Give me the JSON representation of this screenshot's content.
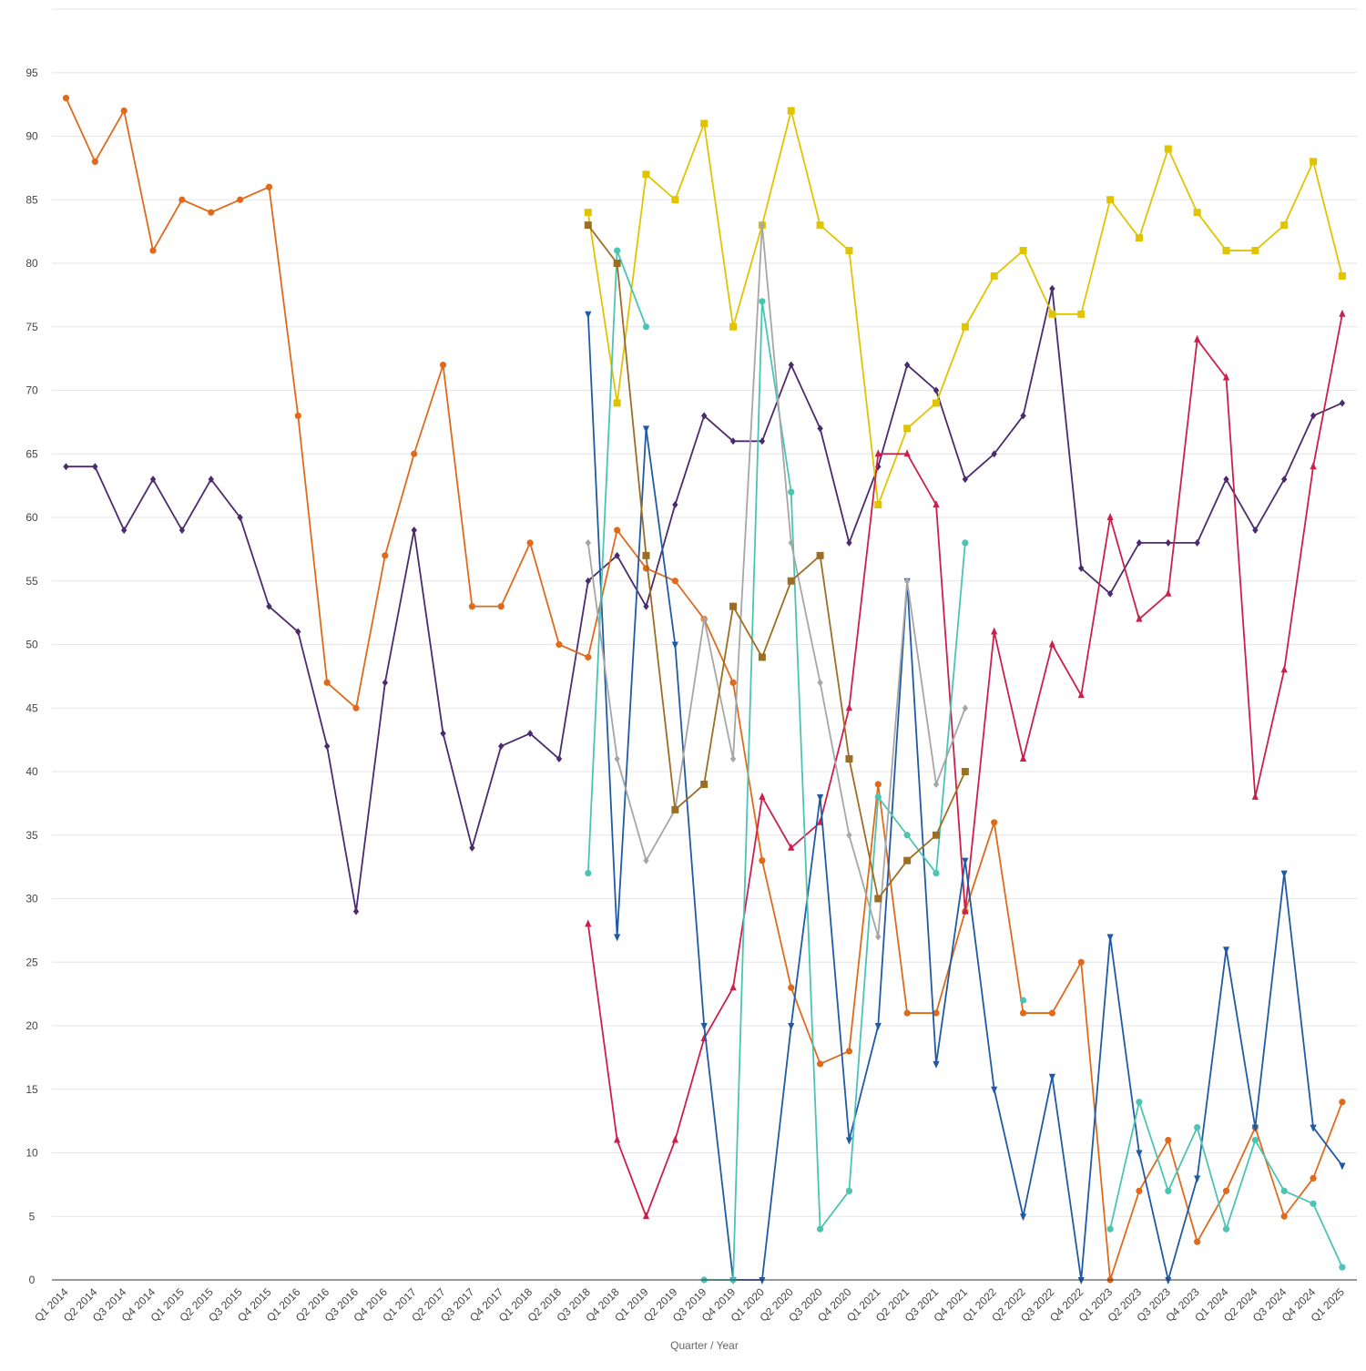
{
  "chart_data": {
    "type": "line",
    "title": "",
    "xlabel": "Quarter / Year",
    "ylabel": "",
    "ylim": [
      0,
      100
    ],
    "yticks": [
      0,
      5,
      10,
      15,
      20,
      25,
      30,
      35,
      40,
      45,
      50,
      55,
      60,
      65,
      70,
      75,
      80,
      85,
      90,
      95
    ],
    "grid": true,
    "legend": "none",
    "categories": [
      "Q1 2014",
      "Q2 2014",
      "Q3 2014",
      "Q4 2014",
      "Q1 2015",
      "Q2 2015",
      "Q3 2015",
      "Q4 2015",
      "Q1 2016",
      "Q2 2016",
      "Q3 2016",
      "Q4 2016",
      "Q1 2017",
      "Q2 2017",
      "Q3 2017",
      "Q4 2017",
      "Q1 2018",
      "Q2 2018",
      "Q3 2018",
      "Q4 2018",
      "Q1 2019",
      "Q2 2019",
      "Q3 2019",
      "Q4 2019",
      "Q1 2020",
      "Q2 2020",
      "Q3 2020",
      "Q4 2020",
      "Q1 2021",
      "Q2 2021",
      "Q3 2021",
      "Q4 2021",
      "Q1 2022",
      "Q2 2022",
      "Q3 2022",
      "Q4 2022",
      "Q1 2023",
      "Q2 2023",
      "Q3 2023",
      "Q4 2023",
      "Q1 2024",
      "Q2 2024",
      "Q3 2024",
      "Q4 2024",
      "Q1 2025"
    ],
    "series": [
      {
        "color": "#4b2a6e",
        "marker": "diamond",
        "values": [
          64,
          64,
          59,
          63,
          59,
          63,
          60,
          53,
          51,
          42,
          29,
          47,
          59,
          43,
          34,
          42,
          43,
          41,
          55,
          57,
          53,
          61,
          68,
          66,
          66,
          72,
          67,
          58,
          64,
          72,
          70,
          63,
          65,
          68,
          78,
          56,
          54,
          58,
          58,
          58,
          63,
          59,
          63,
          68,
          69
        ]
      },
      {
        "color": "#e06a1b",
        "marker": "circle",
        "values": [
          93,
          88,
          92,
          81,
          85,
          84,
          85,
          86,
          68,
          47,
          45,
          57,
          65,
          72,
          53,
          53,
          58,
          50,
          49,
          59,
          56,
          55,
          52,
          47,
          33,
          23,
          17,
          18,
          39,
          21,
          21,
          29,
          36,
          21,
          21,
          25,
          0,
          7,
          11,
          3,
          7,
          12,
          5,
          8,
          14
        ]
      },
      {
        "color": "#e0c400",
        "marker": "square",
        "values": [
          null,
          null,
          null,
          null,
          null,
          null,
          null,
          null,
          null,
          null,
          null,
          null,
          null,
          null,
          null,
          null,
          null,
          null,
          84,
          69,
          87,
          85,
          91,
          75,
          83,
          92,
          83,
          81,
          61,
          67,
          69,
          75,
          79,
          81,
          76,
          76,
          85,
          82,
          89,
          84,
          81,
          81,
          83,
          88,
          79
        ]
      },
      {
        "color": "#cc1f4a",
        "marker": "triangle-up",
        "values": [
          null,
          null,
          null,
          null,
          null,
          null,
          null,
          null,
          null,
          null,
          null,
          null,
          null,
          null,
          null,
          null,
          null,
          null,
          28,
          11,
          5,
          11,
          19,
          23,
          38,
          34,
          36,
          45,
          65,
          65,
          61,
          29,
          51,
          41,
          50,
          46,
          60,
          52,
          54,
          74,
          71,
          38,
          48,
          64,
          76
        ]
      },
      {
        "color": "#1f5aa6",
        "marker": "triangle-down",
        "values": [
          null,
          null,
          null,
          null,
          null,
          null,
          null,
          null,
          null,
          null,
          null,
          null,
          null,
          null,
          null,
          null,
          null,
          null,
          76,
          27,
          67,
          50,
          20,
          0,
          0,
          20,
          38,
          11,
          20,
          55,
          17,
          33,
          15,
          5,
          16,
          0,
          27,
          10,
          0,
          8,
          26,
          12,
          32,
          12,
          9
        ]
      },
      {
        "color": "#4bc4b4",
        "marker": "circle",
        "values": [
          null,
          null,
          null,
          null,
          null,
          null,
          null,
          null,
          null,
          null,
          null,
          null,
          null,
          null,
          null,
          null,
          null,
          null,
          32,
          81,
          75,
          null,
          0,
          0,
          77,
          62,
          4,
          7,
          38,
          35,
          32,
          58,
          null,
          22,
          null,
          null,
          4,
          14,
          7,
          12,
          4,
          11,
          7,
          6,
          1
        ]
      },
      {
        "color": "#a6a6a6",
        "marker": "diamond",
        "values": [
          null,
          null,
          null,
          null,
          null,
          null,
          null,
          null,
          null,
          null,
          null,
          null,
          null,
          null,
          null,
          null,
          null,
          null,
          58,
          41,
          33,
          37,
          52,
          41,
          83,
          58,
          47,
          35,
          27,
          55,
          39,
          45,
          null,
          null,
          null,
          null,
          null,
          null,
          null,
          null,
          null,
          null,
          null,
          null,
          null
        ]
      },
      {
        "color": "#9c6e24",
        "marker": "square",
        "values": [
          null,
          null,
          null,
          null,
          null,
          null,
          null,
          null,
          null,
          null,
          null,
          null,
          null,
          null,
          null,
          null,
          null,
          null,
          83,
          80,
          57,
          37,
          39,
          53,
          49,
          55,
          57,
          41,
          30,
          33,
          35,
          40,
          null,
          null,
          null,
          null,
          null,
          null,
          null,
          null,
          null,
          null,
          null,
          null,
          null
        ]
      }
    ]
  }
}
